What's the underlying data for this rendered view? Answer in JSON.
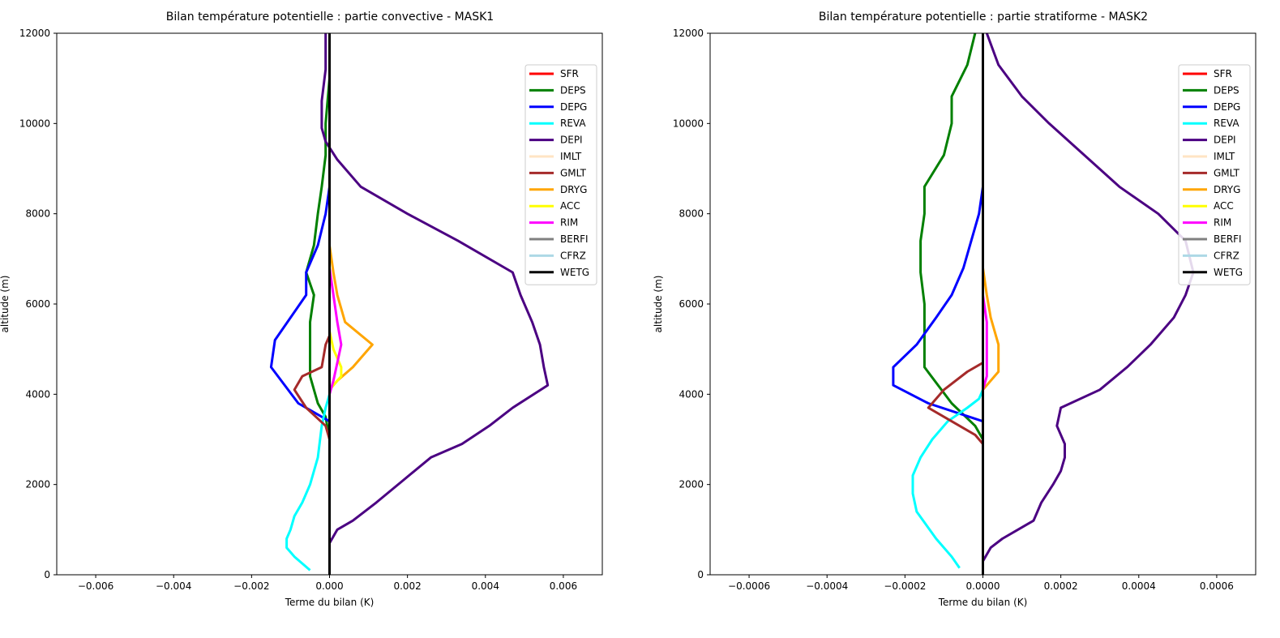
{
  "chart_data": [
    {
      "type": "line",
      "title": "Bilan température potentielle : partie convective - MASK1",
      "xlabel": "Terme du bilan (K)",
      "ylabel": "altitude (m)",
      "xlim": [
        -0.007,
        0.007
      ],
      "ylim": [
        0,
        12000
      ],
      "xticks": [
        -0.006,
        -0.004,
        -0.002,
        0.0,
        0.002,
        0.004,
        0.006
      ],
      "xtick_labels": [
        "−0.006",
        "−0.004",
        "−0.002",
        "0.000",
        "0.002",
        "0.004",
        "0.006"
      ],
      "yticks": [
        0,
        2000,
        4000,
        6000,
        8000,
        10000,
        12000
      ],
      "ytick_labels": [
        "0",
        "2000",
        "4000",
        "6000",
        "8000",
        "10000",
        "12000"
      ],
      "grid": false,
      "legend_position": "upper-right",
      "series": [
        {
          "name": "SFR",
          "color": "#ff0000",
          "points": [
            [
              0,
              0
            ],
            [
              0,
              12000
            ]
          ]
        },
        {
          "name": "DEPS",
          "color": "#008000",
          "points": [
            [
              0,
              3000
            ],
            [
              -0.0001,
              3500
            ],
            [
              -0.0003,
              3800
            ],
            [
              -0.0005,
              4400
            ],
            [
              -0.0005,
              5000
            ],
            [
              -0.0005,
              5600
            ],
            [
              -0.0004,
              6200
            ],
            [
              -0.0006,
              6700
            ],
            [
              -0.0004,
              7300
            ],
            [
              -0.0003,
              8000
            ],
            [
              -0.0002,
              8600
            ],
            [
              -0.0001,
              9300
            ],
            [
              -0.0001,
              10000
            ],
            [
              0,
              11000
            ],
            [
              0,
              12000
            ]
          ]
        },
        {
          "name": "DEPG",
          "color": "#0000ff",
          "points": [
            [
              0,
              3400
            ],
            [
              -0.0008,
              3800
            ],
            [
              -0.0015,
              4600
            ],
            [
              -0.0014,
              5200
            ],
            [
              -0.0006,
              6200
            ],
            [
              -0.0006,
              6700
            ],
            [
              -0.0003,
              7300
            ],
            [
              -0.0001,
              8000
            ],
            [
              0,
              8600
            ],
            [
              0,
              9300
            ],
            [
              0,
              12000
            ]
          ]
        },
        {
          "name": "REVA",
          "color": "#00ffff",
          "points": [
            [
              -0.0005,
              100
            ],
            [
              -0.0009,
              400
            ],
            [
              -0.0011,
              600
            ],
            [
              -0.0011,
              800
            ],
            [
              -0.001,
              1000
            ],
            [
              -0.0009,
              1300
            ],
            [
              -0.0007,
              1600
            ],
            [
              -0.0005,
              2000
            ],
            [
              -0.0003,
              2600
            ],
            [
              -0.0002,
              3300
            ],
            [
              -0.0001,
              3700
            ],
            [
              0,
              4000
            ]
          ]
        },
        {
          "name": "DEPI",
          "color": "#4b0082",
          "points": [
            [
              0,
              0
            ],
            [
              0,
              200
            ],
            [
              0,
              700
            ],
            [
              0.0002,
              1000
            ],
            [
              0.0006,
              1200
            ],
            [
              0.0012,
              1600
            ],
            [
              0.0019,
              2100
            ],
            [
              0.0026,
              2600
            ],
            [
              0.0034,
              2900
            ],
            [
              0.0041,
              3300
            ],
            [
              0.0047,
              3700
            ],
            [
              0.0056,
              4200
            ],
            [
              0.0055,
              4600
            ],
            [
              0.0054,
              5100
            ],
            [
              0.0052,
              5600
            ],
            [
              0.0049,
              6200
            ],
            [
              0.0047,
              6700
            ],
            [
              0.0033,
              7400
            ],
            [
              0.002,
              8000
            ],
            [
              0.0008,
              8600
            ],
            [
              0.0002,
              9200
            ],
            [
              -0.0001,
              9600
            ],
            [
              -0.0002,
              9900
            ],
            [
              -0.0002,
              10500
            ],
            [
              -0.0001,
              11200
            ],
            [
              -0.0001,
              12000
            ]
          ]
        },
        {
          "name": "IMLT",
          "color": "#ffe4c4",
          "points": [
            [
              0,
              4000
            ],
            [
              0,
              5000
            ]
          ]
        },
        {
          "name": "GMLT",
          "color": "#a52a2a",
          "points": [
            [
              0,
              3000
            ],
            [
              -0.0001,
              3300
            ],
            [
              -0.0006,
              3700
            ],
            [
              -0.0009,
              4100
            ],
            [
              -0.0007,
              4400
            ],
            [
              -0.0002,
              4600
            ],
            [
              -0.0001,
              5100
            ],
            [
              0,
              5300
            ]
          ]
        },
        {
          "name": "DRYG",
          "color": "#ffa500",
          "points": [
            [
              0,
              4100
            ],
            [
              0.0002,
              4300
            ],
            [
              0.0006,
              4600
            ],
            [
              0.0011,
              5100
            ],
            [
              0.0004,
              5600
            ],
            [
              0.0002,
              6200
            ],
            [
              0.0001,
              6700
            ],
            [
              0,
              7300
            ],
            [
              0,
              7500
            ]
          ]
        },
        {
          "name": "ACC",
          "color": "#ffff00",
          "points": [
            [
              0,
              4100
            ],
            [
              0.0003,
              4400
            ],
            [
              0.0003,
              4600
            ],
            [
              0.0001,
              5000
            ],
            [
              0,
              5400
            ]
          ]
        },
        {
          "name": "RIM",
          "color": "#ff00ff",
          "points": [
            [
              0,
              4000
            ],
            [
              0.0001,
              4300
            ],
            [
              0.0002,
              4700
            ],
            [
              0.0003,
              5100
            ],
            [
              0.0002,
              5600
            ],
            [
              0.0001,
              6200
            ],
            [
              0,
              6800
            ]
          ]
        },
        {
          "name": "BERFI",
          "color": "#808080",
          "points": [
            [
              0,
              0
            ],
            [
              0,
              12000
            ]
          ]
        },
        {
          "name": "CFRZ",
          "color": "#add8e6",
          "points": [
            [
              0,
              0
            ],
            [
              0,
              12000
            ]
          ]
        },
        {
          "name": "WETG",
          "color": "#000000",
          "points": [
            [
              0,
              0
            ],
            [
              0,
              12000
            ]
          ]
        }
      ]
    },
    {
      "type": "line",
      "title": "Bilan température potentielle : partie stratiforme - MASK2",
      "xlabel": "Terme du bilan (K)",
      "ylabel": "altitude (m)",
      "xlim": [
        -0.0007,
        0.0007
      ],
      "ylim": [
        0,
        12000
      ],
      "xticks": [
        -0.0006,
        -0.0004,
        -0.0002,
        0.0,
        0.0002,
        0.0004,
        0.0006
      ],
      "xtick_labels": [
        "−0.0006",
        "−0.0004",
        "−0.0002",
        "0.0000",
        "0.0002",
        "0.0004",
        "0.0006"
      ],
      "yticks": [
        0,
        2000,
        4000,
        6000,
        8000,
        10000,
        12000
      ],
      "ytick_labels": [
        "0",
        "2000",
        "4000",
        "6000",
        "8000",
        "10000",
        "12000"
      ],
      "grid": false,
      "legend_position": "upper-right",
      "series": [
        {
          "name": "SFR",
          "color": "#ff0000",
          "points": [
            [
              0,
              0
            ],
            [
              0,
              12000
            ]
          ]
        },
        {
          "name": "DEPS",
          "color": "#008000",
          "points": [
            [
              0,
              3000
            ],
            [
              -2e-05,
              3300
            ],
            [
              -8e-05,
              3800
            ],
            [
              -0.00015,
              4600
            ],
            [
              -0.00015,
              5200
            ],
            [
              -0.00015,
              6000
            ],
            [
              -0.00016,
              6700
            ],
            [
              -0.00016,
              7400
            ],
            [
              -0.00015,
              8000
            ],
            [
              -0.00015,
              8600
            ],
            [
              -0.0001,
              9300
            ],
            [
              -8e-05,
              10000
            ],
            [
              -8e-05,
              10600
            ],
            [
              -4e-05,
              11300
            ],
            [
              -2e-05,
              12000
            ]
          ]
        },
        {
          "name": "DEPG",
          "color": "#0000ff",
          "points": [
            [
              0,
              3400
            ],
            [
              -0.00014,
              3800
            ],
            [
              -0.00023,
              4200
            ],
            [
              -0.00023,
              4600
            ],
            [
              -0.00017,
              5100
            ],
            [
              -0.00012,
              5700
            ],
            [
              -8e-05,
              6200
            ],
            [
              -5e-05,
              6800
            ],
            [
              -3e-05,
              7400
            ],
            [
              -1e-05,
              8000
            ],
            [
              0,
              8600
            ],
            [
              0,
              9300
            ],
            [
              0,
              10000
            ],
            [
              0,
              12000
            ]
          ]
        },
        {
          "name": "REVA",
          "color": "#00ffff",
          "points": [
            [
              -6e-05,
              150
            ],
            [
              -8e-05,
              400
            ],
            [
              -0.00012,
              800
            ],
            [
              -0.00017,
              1400
            ],
            [
              -0.00018,
              1800
            ],
            [
              -0.00018,
              2200
            ],
            [
              -0.00016,
              2600
            ],
            [
              -0.00013,
              3000
            ],
            [
              -9e-05,
              3400
            ],
            [
              -4e-05,
              3700
            ],
            [
              -1e-05,
              3900
            ],
            [
              0,
              4100
            ]
          ]
        },
        {
          "name": "DEPI",
          "color": "#4b0082",
          "points": [
            [
              0,
              100
            ],
            [
              0,
              300
            ],
            [
              2e-05,
              600
            ],
            [
              5e-05,
              800
            ],
            [
              9e-05,
              1000
            ],
            [
              0.00013,
              1200
            ],
            [
              0.00015,
              1600
            ],
            [
              0.00018,
              2000
            ],
            [
              0.0002,
              2300
            ],
            [
              0.00021,
              2600
            ],
            [
              0.00021,
              2900
            ],
            [
              0.00019,
              3300
            ],
            [
              0.0002,
              3700
            ],
            [
              0.0003,
              4100
            ],
            [
              0.00037,
              4600
            ],
            [
              0.00043,
              5100
            ],
            [
              0.00049,
              5700
            ],
            [
              0.00052,
              6200
            ],
            [
              0.00054,
              6700
            ],
            [
              0.00052,
              7400
            ],
            [
              0.00045,
              8000
            ],
            [
              0.00035,
              8600
            ],
            [
              0.00026,
              9300
            ],
            [
              0.00017,
              10000
            ],
            [
              0.0001,
              10600
            ],
            [
              4e-05,
              11300
            ],
            [
              1e-05,
              12000
            ]
          ]
        },
        {
          "name": "IMLT",
          "color": "#ffe4c4",
          "points": [
            [
              0,
              4000
            ],
            [
              0,
              5000
            ]
          ]
        },
        {
          "name": "GMLT",
          "color": "#a52a2a",
          "points": [
            [
              0,
              2900
            ],
            [
              -2e-05,
              3100
            ],
            [
              -8e-05,
              3400
            ],
            [
              -0.00014,
              3700
            ],
            [
              -0.0001,
              4100
            ],
            [
              -4e-05,
              4500
            ],
            [
              0,
              4700
            ]
          ]
        },
        {
          "name": "DRYG",
          "color": "#ffa500",
          "points": [
            [
              0,
              4100
            ],
            [
              4e-05,
              4500
            ],
            [
              4e-05,
              5100
            ],
            [
              2e-05,
              5700
            ],
            [
              1e-05,
              6200
            ],
            [
              0,
              6800
            ],
            [
              0,
              7300
            ]
          ]
        },
        {
          "name": "ACC",
          "color": "#ffff00",
          "points": [
            [
              0,
              4200
            ],
            [
              0,
              5000
            ]
          ]
        },
        {
          "name": "RIM",
          "color": "#ff00ff",
          "points": [
            [
              0,
              4100
            ],
            [
              1e-05,
              4400
            ],
            [
              1e-05,
              5000
            ],
            [
              1e-05,
              5600
            ],
            [
              0,
              6200
            ],
            [
              0,
              6700
            ]
          ]
        },
        {
          "name": "BERFI",
          "color": "#808080",
          "points": [
            [
              0,
              0
            ],
            [
              0,
              12000
            ]
          ]
        },
        {
          "name": "CFRZ",
          "color": "#add8e6",
          "points": [
            [
              0,
              0
            ],
            [
              0,
              12000
            ]
          ]
        },
        {
          "name": "WETG",
          "color": "#000000",
          "points": [
            [
              0,
              0
            ],
            [
              0,
              12000
            ]
          ]
        }
      ]
    }
  ]
}
